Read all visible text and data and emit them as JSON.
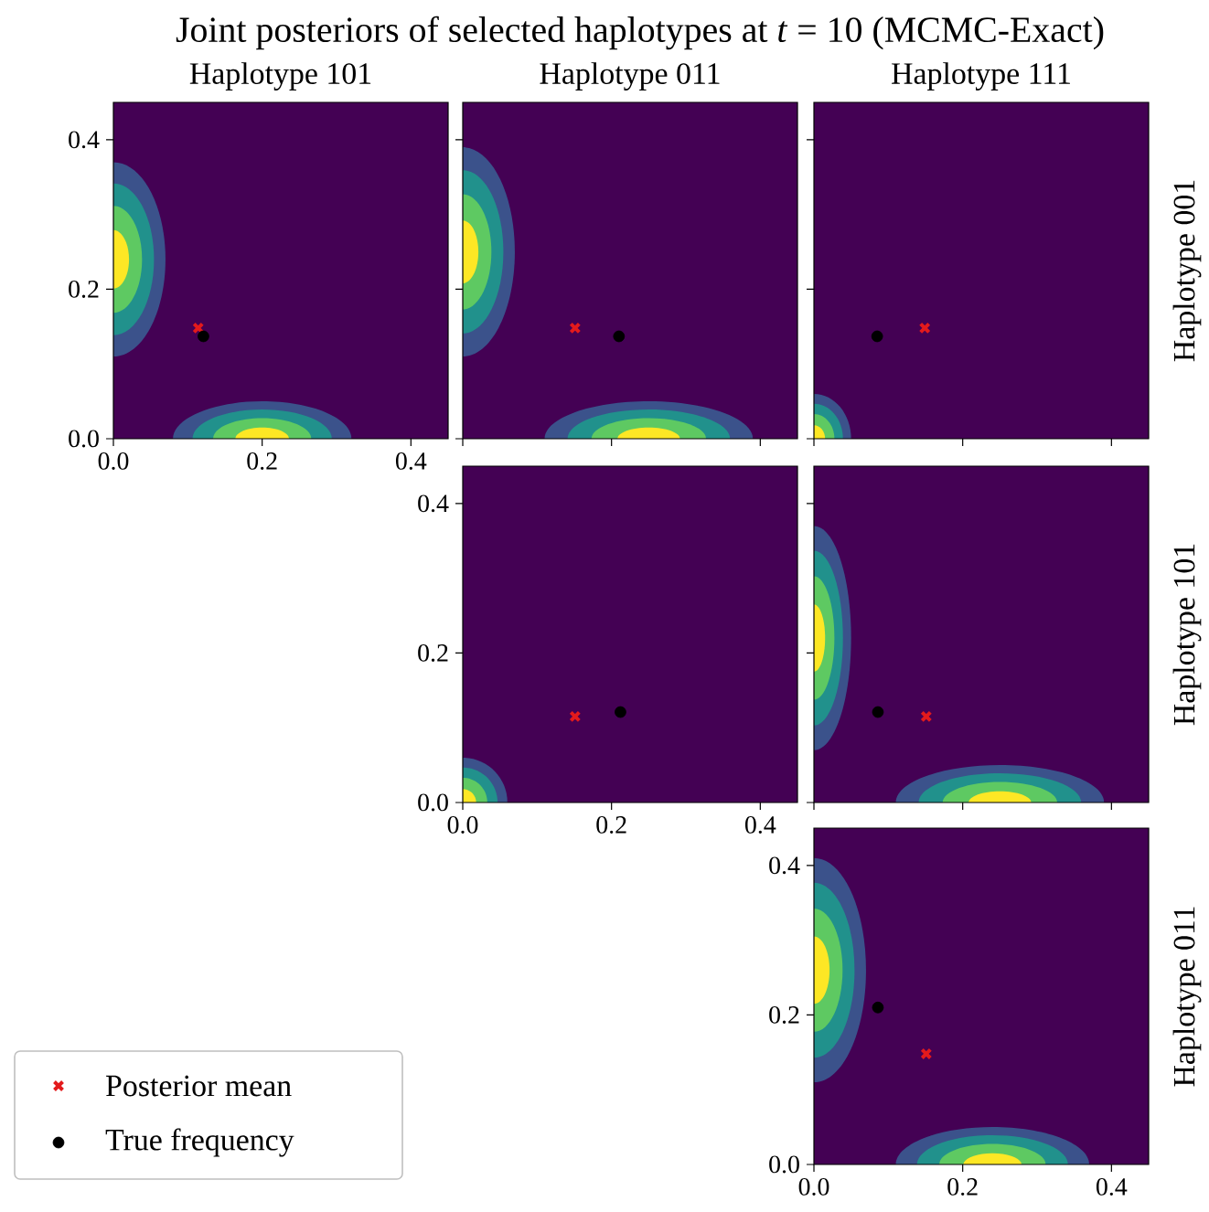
{
  "chart_data": [
    {
      "type": "scatter",
      "title": "Haplotype 101",
      "annotations": [
        "Joint posteriors of selected haplotypes at *t* = 10 (MCMC-Exact)"
      ],
      "legend": "bottom left",
      "xlim": [
        0,
        0.45
      ],
      "ylim": [
        0,
        0.45
      ],
      "xticks": [
        {
          "value": 0,
          "label": "0.0"
        },
        {
          "value": 0.2,
          "label": "0.2"
        },
        {
          "value": 0.4,
          "label": "0.4"
        }
      ],
      "yticks": [
        {
          "value": 0,
          "label": "0.0"
        },
        {
          "value": 0.2,
          "label": "0.2"
        },
        {
          "value": 0.4,
          "label": "0.4"
        }
      ],
      "series": [
        {
          "name": "Posterior mean",
          "color": "#e31a1c",
          "marker": "cross",
          "x": [
            0.114
          ],
          "values": [
            0.148
          ]
        },
        {
          "name": "True frequency",
          "color": "#000000",
          "marker": "circle",
          "x": [
            0.121
          ],
          "values": [
            0.137
          ]
        }
      ]
    },
    {
      "type": "scatter",
      "title": "Haplotype 011",
      "tick_labels": false,
      "xlim": [
        0,
        0.45
      ],
      "ylim": [
        0,
        0.45
      ],
      "xticks": [
        0,
        0.2,
        0.4
      ],
      "yticks": [
        0,
        0.2,
        0.4
      ],
      "series": [
        {
          "name": "Posterior mean",
          "color": "#e31a1c",
          "marker": "cross",
          "x": [
            0.151
          ],
          "values": [
            0.148
          ]
        },
        {
          "name": "True frequency",
          "color": "#000000",
          "marker": "circle",
          "x": [
            0.21
          ],
          "values": [
            0.137
          ]
        }
      ]
    },
    {
      "type": "scatter",
      "title": "Haplotype 111",
      "y2label": "Haplotype 001",
      "tick_labels": false,
      "xlim": [
        0,
        0.45
      ],
      "ylim": [
        0,
        0.45
      ],
      "xticks": [
        0,
        0.2,
        0.4
      ],
      "yticks": [
        0,
        0.2,
        0.4
      ],
      "series": [
        {
          "name": "Posterior mean",
          "color": "#e31a1c",
          "marker": "cross",
          "x": [
            0.149
          ],
          "values": [
            0.148
          ]
        },
        {
          "name": "True frequency",
          "color": "#000000",
          "marker": "circle",
          "x": [
            0.085
          ],
          "values": [
            0.137
          ]
        }
      ]
    },
    {
      "type": "scatter",
      "xlim": [
        0,
        0.45
      ],
      "ylim": [
        0,
        0.45
      ],
      "xticks": [
        {
          "value": 0,
          "label": "0.0"
        },
        {
          "value": 0.2,
          "label": "0.2"
        },
        {
          "value": 0.4,
          "label": "0.4"
        }
      ],
      "yticks": [
        {
          "value": 0,
          "label": "0.0"
        },
        {
          "value": 0.2,
          "label": "0.2"
        },
        {
          "value": 0.4,
          "label": "0.4"
        }
      ],
      "series": [
        {
          "name": "Posterior mean",
          "color": "#e31a1c",
          "marker": "cross",
          "x": [
            0.151
          ],
          "values": [
            0.115
          ]
        },
        {
          "name": "True frequency",
          "color": "#000000",
          "marker": "circle",
          "x": [
            0.212
          ],
          "values": [
            0.121
          ]
        }
      ]
    },
    {
      "type": "scatter",
      "y2label": "Haplotype 101",
      "tick_labels": false,
      "xlim": [
        0,
        0.45
      ],
      "ylim": [
        0,
        0.45
      ],
      "xticks": [
        0,
        0.2,
        0.4
      ],
      "yticks": [
        0,
        0.2,
        0.4
      ],
      "series": [
        {
          "name": "Posterior mean",
          "color": "#e31a1c",
          "marker": "cross",
          "x": [
            0.151
          ],
          "values": [
            0.115
          ]
        },
        {
          "name": "True frequency",
          "color": "#000000",
          "marker": "circle",
          "x": [
            0.086
          ],
          "values": [
            0.121
          ]
        }
      ]
    },
    {
      "type": "scatter",
      "y2label": "Haplotype 011",
      "xlim": [
        0,
        0.45
      ],
      "ylim": [
        0,
        0.45
      ],
      "xticks": [
        {
          "value": 0,
          "label": "0.0"
        },
        {
          "value": 0.2,
          "label": "0.2"
        },
        {
          "value": 0.4,
          "label": "0.4"
        }
      ],
      "yticks": [
        {
          "value": 0,
          "label": "0.0"
        },
        {
          "value": 0.2,
          "label": "0.2"
        },
        {
          "value": 0.4,
          "label": "0.4"
        }
      ],
      "series": [
        {
          "name": "Posterior mean",
          "color": "#e31a1c",
          "marker": "cross",
          "x": [
            0.151
          ],
          "values": [
            0.148
          ]
        },
        {
          "name": "True frequency",
          "color": "#000000",
          "marker": "circle",
          "x": [
            0.086
          ],
          "values": [
            0.21
          ]
        }
      ]
    }
  ]
}
